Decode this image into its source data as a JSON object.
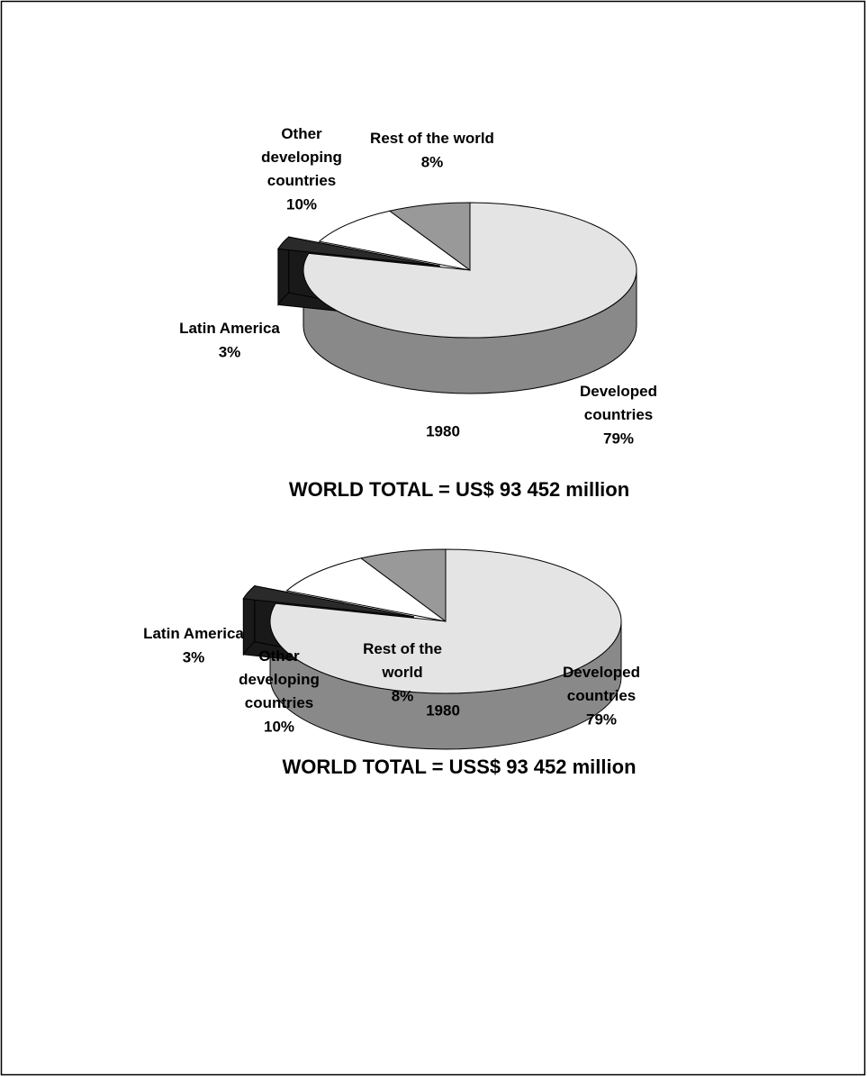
{
  "chart_data": [
    {
      "type": "pie",
      "subtitle": "1980",
      "footer": "WORLD TOTAL = US$ 93 452 million",
      "categories": [
        "Developed countries",
        "Latin America",
        "Other developing countries",
        "Rest of the world"
      ],
      "values": [
        79,
        3,
        10,
        8
      ],
      "value_labels": [
        "79%",
        "3%",
        "10%",
        "8%"
      ],
      "colors": [
        "#e4e4e4",
        "#2a2a2a",
        "#ffffff",
        "#999999"
      ]
    },
    {
      "type": "pie",
      "subtitle": "1980",
      "footer": "WORLD TOTAL = USS$ 93 452 million",
      "categories": [
        "Developed countries",
        "Latin America",
        "Other developing countries",
        "Rest of the world"
      ],
      "values": [
        79,
        3,
        10,
        8
      ],
      "value_labels": [
        "79%",
        "3%",
        "10%",
        "8%"
      ],
      "colors": [
        "#e4e4e4",
        "#2a2a2a",
        "#ffffff",
        "#999999"
      ]
    }
  ]
}
